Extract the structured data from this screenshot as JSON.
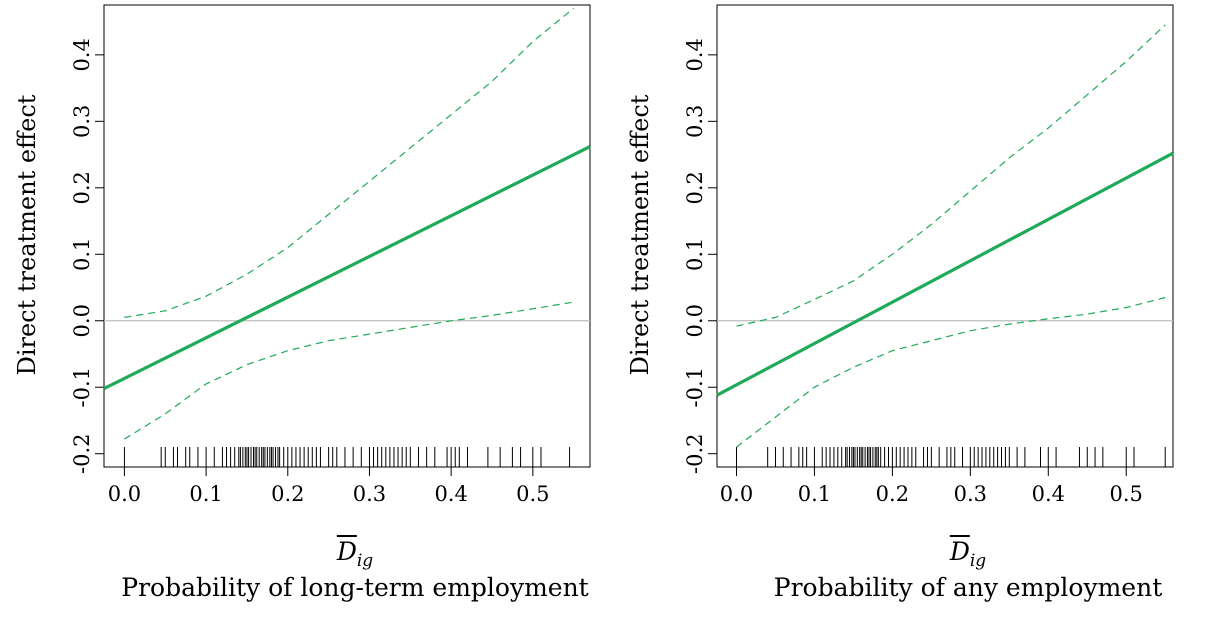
{
  "chart_data": [
    {
      "type": "line",
      "title": "",
      "caption": "Probability of long-term employment",
      "ylabel": "Direct treatment effect",
      "xlabel": {
        "base": "D",
        "subscript": "ig"
      },
      "xlim": [
        -0.025,
        0.57
      ],
      "ylim": [
        -0.22,
        0.475
      ],
      "xticks": [
        "0.0",
        "0.1",
        "0.2",
        "0.3",
        "0.4",
        "0.5"
      ],
      "yticks": [
        "-0.2",
        "-0.1",
        "0.0",
        "0.1",
        "0.2",
        "0.3",
        "0.4"
      ],
      "reference_line_y": 0.0,
      "series": [
        {
          "role": "estimate",
          "style": "solid",
          "color": "#1faa59",
          "x": [
            -0.025,
            0.57
          ],
          "y": [
            -0.102,
            0.262
          ]
        },
        {
          "role": "upper-band",
          "style": "dashed",
          "color": "#1faa59",
          "x": [
            0.0,
            0.05,
            0.1,
            0.15,
            0.2,
            0.25,
            0.3,
            0.35,
            0.4,
            0.45,
            0.5,
            0.55
          ],
          "y": [
            0.005,
            0.015,
            0.037,
            0.07,
            0.11,
            0.16,
            0.21,
            0.26,
            0.31,
            0.36,
            0.42,
            0.47
          ]
        },
        {
          "role": "lower-band",
          "style": "dashed",
          "color": "#1faa59",
          "x": [
            0.0,
            0.05,
            0.1,
            0.15,
            0.2,
            0.25,
            0.3,
            0.35,
            0.4,
            0.45,
            0.5,
            0.55
          ],
          "y": [
            -0.178,
            -0.14,
            -0.095,
            -0.066,
            -0.045,
            -0.03,
            -0.02,
            -0.01,
            0.0,
            0.008,
            0.018,
            0.028
          ]
        }
      ],
      "rug": [
        0.0,
        0.045,
        0.05,
        0.06,
        0.065,
        0.075,
        0.08,
        0.09,
        0.1,
        0.11,
        0.12,
        0.125,
        0.13,
        0.135,
        0.14,
        0.142,
        0.145,
        0.148,
        0.15,
        0.152,
        0.155,
        0.158,
        0.16,
        0.162,
        0.165,
        0.168,
        0.17,
        0.172,
        0.175,
        0.178,
        0.18,
        0.182,
        0.185,
        0.188,
        0.19,
        0.195,
        0.2,
        0.205,
        0.21,
        0.215,
        0.22,
        0.225,
        0.23,
        0.235,
        0.24,
        0.25,
        0.255,
        0.26,
        0.27,
        0.28,
        0.29,
        0.3,
        0.305,
        0.31,
        0.315,
        0.32,
        0.325,
        0.33,
        0.335,
        0.34,
        0.345,
        0.35,
        0.36,
        0.37,
        0.38,
        0.395,
        0.4,
        0.405,
        0.41,
        0.42,
        0.445,
        0.46,
        0.475,
        0.485,
        0.5,
        0.51,
        0.545
      ]
    },
    {
      "type": "line",
      "title": "",
      "caption": "Probability of any employment",
      "ylabel": "Direct treatment effect",
      "xlabel": {
        "base": "D",
        "subscript": "ig"
      },
      "xlim": [
        -0.025,
        0.56
      ],
      "ylim": [
        -0.22,
        0.475
      ],
      "xticks": [
        "0.0",
        "0.1",
        "0.2",
        "0.3",
        "0.4",
        "0.5"
      ],
      "yticks": [
        "-0.2",
        "-0.1",
        "0.0",
        "0.1",
        "0.2",
        "0.3",
        "0.4"
      ],
      "reference_line_y": 0.0,
      "series": [
        {
          "role": "estimate",
          "style": "solid",
          "color": "#1faa59",
          "x": [
            -0.025,
            0.56
          ],
          "y": [
            -0.112,
            0.252
          ]
        },
        {
          "role": "upper-band",
          "style": "dashed",
          "color": "#1faa59",
          "x": [
            0.0,
            0.05,
            0.1,
            0.15,
            0.2,
            0.25,
            0.3,
            0.35,
            0.4,
            0.45,
            0.5,
            0.55
          ],
          "y": [
            -0.008,
            0.005,
            0.032,
            0.06,
            0.1,
            0.145,
            0.195,
            0.245,
            0.29,
            0.34,
            0.39,
            0.445
          ]
        },
        {
          "role": "lower-band",
          "style": "dashed",
          "color": "#1faa59",
          "x": [
            0.0,
            0.05,
            0.1,
            0.15,
            0.2,
            0.25,
            0.3,
            0.35,
            0.4,
            0.45,
            0.5,
            0.55
          ],
          "y": [
            -0.19,
            -0.145,
            -0.1,
            -0.07,
            -0.045,
            -0.03,
            -0.015,
            -0.005,
            0.003,
            0.01,
            0.02,
            0.035
          ]
        }
      ],
      "rug": [
        0.0,
        0.04,
        0.05,
        0.06,
        0.07,
        0.08,
        0.085,
        0.09,
        0.1,
        0.11,
        0.115,
        0.12,
        0.125,
        0.13,
        0.135,
        0.14,
        0.142,
        0.145,
        0.148,
        0.15,
        0.152,
        0.155,
        0.158,
        0.16,
        0.162,
        0.165,
        0.168,
        0.17,
        0.172,
        0.175,
        0.178,
        0.18,
        0.182,
        0.185,
        0.19,
        0.195,
        0.2,
        0.205,
        0.21,
        0.215,
        0.22,
        0.225,
        0.23,
        0.24,
        0.245,
        0.25,
        0.26,
        0.27,
        0.275,
        0.28,
        0.29,
        0.3,
        0.305,
        0.31,
        0.315,
        0.32,
        0.325,
        0.33,
        0.335,
        0.34,
        0.345,
        0.35,
        0.36,
        0.37,
        0.39,
        0.4,
        0.41,
        0.44,
        0.45,
        0.46,
        0.47,
        0.5,
        0.51,
        0.55
      ]
    }
  ]
}
